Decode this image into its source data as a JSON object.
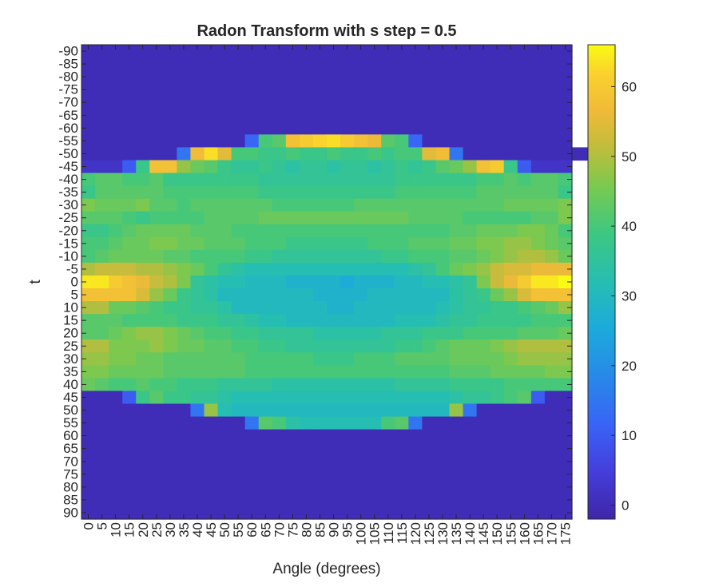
{
  "chart_data": {
    "type": "heatmap",
    "title": "Radon Transform with s step = 0.5",
    "xlabel": "Angle (degrees)",
    "ylabel": "t",
    "x_ticks": [
      "0",
      "5",
      "10",
      "15",
      "20",
      "25",
      "30",
      "35",
      "40",
      "45",
      "50",
      "55",
      "60",
      "65",
      "70",
      "75",
      "80",
      "85",
      "90",
      "95",
      "100",
      "105",
      "110",
      "115",
      "120",
      "125",
      "130",
      "135",
      "140",
      "145",
      "150",
      "155",
      "160",
      "165",
      "170",
      "175"
    ],
    "y_ticks": [
      "-90",
      "-85",
      "-80",
      "-75",
      "-70",
      "-65",
      "-60",
      "-55",
      "-50",
      "-45",
      "-40",
      "-35",
      "-30",
      "-25",
      "-20",
      "-15",
      "-10",
      "-5",
      "0",
      "5",
      "10",
      "15",
      "20",
      "25",
      "30",
      "35",
      "40",
      "45",
      "50",
      "55",
      "60",
      "65",
      "70",
      "75",
      "80",
      "85",
      "90"
    ],
    "colorbar_ticks": [
      "0",
      "10",
      "20",
      "30",
      "40",
      "50",
      "60"
    ],
    "colorbar_range": [
      -2,
      66
    ],
    "colormap": "parula",
    "values": [
      [
        0,
        0,
        0,
        0,
        0,
        0,
        0,
        0,
        0,
        0,
        0,
        0,
        0,
        0,
        0,
        0,
        0,
        0,
        0,
        0,
        0,
        0,
        0,
        0,
        0,
        0,
        0,
        0,
        0,
        0,
        0,
        0,
        0,
        0,
        0,
        0
      ],
      [
        0,
        0,
        0,
        0,
        0,
        0,
        0,
        0,
        0,
        0,
        0,
        0,
        0,
        0,
        0,
        0,
        0,
        0,
        0,
        0,
        0,
        0,
        0,
        0,
        0,
        0,
        0,
        0,
        0,
        0,
        0,
        0,
        0,
        0,
        0,
        0
      ],
      [
        0,
        0,
        0,
        0,
        0,
        0,
        0,
        0,
        0,
        0,
        0,
        0,
        0,
        0,
        0,
        0,
        0,
        0,
        0,
        0,
        0,
        0,
        0,
        0,
        0,
        0,
        0,
        0,
        0,
        0,
        0,
        0,
        0,
        0,
        0,
        0
      ],
      [
        0,
        0,
        0,
        0,
        0,
        0,
        0,
        0,
        0,
        0,
        0,
        0,
        0,
        0,
        0,
        0,
        0,
        0,
        0,
        0,
        0,
        0,
        0,
        0,
        0,
        0,
        0,
        0,
        0,
        0,
        0,
        0,
        0,
        0,
        0,
        0
      ],
      [
        0,
        0,
        0,
        0,
        0,
        0,
        0,
        0,
        0,
        0,
        0,
        0,
        0,
        0,
        0,
        0,
        0,
        0,
        0,
        0,
        0,
        0,
        0,
        0,
        0,
        0,
        0,
        0,
        0,
        0,
        0,
        0,
        0,
        0,
        0,
        0
      ],
      [
        0,
        0,
        0,
        0,
        0,
        0,
        0,
        0,
        0,
        0,
        0,
        0,
        0,
        0,
        0,
        0,
        0,
        0,
        0,
        0,
        0,
        0,
        0,
        0,
        0,
        0,
        0,
        0,
        0,
        0,
        0,
        0,
        0,
        0,
        0,
        0
      ],
      [
        0,
        0,
        0,
        0,
        0,
        0,
        0,
        0,
        0,
        0,
        0,
        0,
        0,
        0,
        0,
        0,
        0,
        0,
        0,
        0,
        0,
        0,
        0,
        0,
        0,
        0,
        0,
        0,
        0,
        0,
        0,
        0,
        0,
        0,
        0,
        0
      ],
      [
        0,
        0,
        0,
        0,
        0,
        0,
        0,
        0,
        0,
        0,
        0,
        0,
        12,
        40,
        42,
        58,
        60,
        62,
        63,
        60,
        58,
        56,
        42,
        40,
        12,
        0,
        0,
        0,
        0,
        0,
        0,
        0,
        0,
        0,
        0,
        0
      ],
      [
        0,
        0,
        0,
        0,
        0,
        0,
        0,
        15,
        57,
        63,
        55,
        40,
        40,
        38,
        38,
        40,
        38,
        38,
        40,
        38,
        38,
        40,
        38,
        40,
        40,
        55,
        57,
        15,
        0,
        0,
        0,
        0,
        0,
        0,
        0,
        0,
        0,
        0
      ],
      [
        2,
        2,
        2,
        10,
        38,
        58,
        58,
        48,
        44,
        42,
        38,
        36,
        36,
        38,
        36,
        34,
        36,
        36,
        34,
        36,
        36,
        34,
        36,
        38,
        36,
        38,
        42,
        44,
        48,
        58,
        60,
        38,
        10,
        2,
        2,
        2
      ],
      [
        40,
        42,
        42,
        40,
        40,
        42,
        38,
        38,
        38,
        38,
        38,
        38,
        38,
        36,
        36,
        36,
        36,
        36,
        36,
        36,
        36,
        36,
        36,
        38,
        38,
        38,
        38,
        38,
        38,
        40,
        40,
        42,
        40,
        42,
        42,
        40
      ],
      [
        38,
        42,
        42,
        42,
        42,
        42,
        40,
        40,
        40,
        40,
        40,
        40,
        40,
        38,
        38,
        38,
        38,
        38,
        38,
        38,
        38,
        38,
        38,
        40,
        40,
        40,
        40,
        40,
        40,
        42,
        42,
        42,
        42,
        42,
        42,
        38
      ],
      [
        46,
        44,
        44,
        44,
        46,
        42,
        42,
        40,
        42,
        42,
        42,
        42,
        42,
        42,
        40,
        40,
        40,
        40,
        40,
        40,
        42,
        42,
        42,
        42,
        42,
        42,
        42,
        42,
        42,
        42,
        42,
        44,
        44,
        44,
        44,
        46
      ],
      [
        42,
        42,
        42,
        40,
        38,
        40,
        40,
        40,
        40,
        42,
        42,
        42,
        42,
        44,
        44,
        44,
        44,
        44,
        44,
        44,
        44,
        44,
        44,
        44,
        42,
        42,
        42,
        42,
        40,
        40,
        40,
        40,
        40,
        42,
        42,
        46
      ],
      [
        38,
        38,
        40,
        42,
        44,
        44,
        44,
        44,
        42,
        42,
        42,
        40,
        40,
        40,
        40,
        40,
        40,
        40,
        40,
        40,
        40,
        40,
        40,
        40,
        40,
        40,
        40,
        42,
        42,
        44,
        44,
        44,
        46,
        46,
        44,
        40
      ],
      [
        40,
        40,
        42,
        44,
        44,
        46,
        46,
        44,
        44,
        42,
        42,
        42,
        40,
        40,
        40,
        38,
        38,
        38,
        38,
        38,
        38,
        40,
        40,
        40,
        42,
        42,
        42,
        44,
        44,
        46,
        46,
        48,
        48,
        46,
        44,
        42
      ],
      [
        40,
        42,
        44,
        44,
        44,
        44,
        42,
        42,
        40,
        40,
        40,
        40,
        38,
        38,
        36,
        36,
        36,
        36,
        36,
        36,
        36,
        36,
        38,
        38,
        40,
        40,
        40,
        42,
        42,
        44,
        46,
        48,
        50,
        50,
        48,
        44
      ],
      [
        50,
        52,
        52,
        52,
        50,
        50,
        48,
        46,
        44,
        40,
        36,
        34,
        32,
        32,
        32,
        32,
        32,
        32,
        32,
        32,
        32,
        32,
        32,
        32,
        34,
        36,
        40,
        44,
        46,
        48,
        52,
        54,
        54,
        56,
        56,
        56
      ],
      [
        64,
        64,
        60,
        58,
        56,
        52,
        50,
        46,
        36,
        34,
        32,
        32,
        30,
        30,
        30,
        28,
        28,
        28,
        28,
        26,
        28,
        28,
        28,
        30,
        30,
        32,
        32,
        34,
        36,
        46,
        52,
        56,
        60,
        64,
        64,
        66
      ],
      [
        58,
        58,
        58,
        58,
        54,
        48,
        44,
        38,
        36,
        34,
        30,
        30,
        30,
        30,
        30,
        30,
        30,
        28,
        28,
        28,
        28,
        30,
        30,
        30,
        30,
        30,
        30,
        34,
        36,
        38,
        44,
        48,
        54,
        58,
        58,
        58
      ],
      [
        50,
        50,
        44,
        44,
        42,
        40,
        38,
        38,
        36,
        36,
        34,
        30,
        30,
        30,
        30,
        30,
        30,
        30,
        28,
        28,
        30,
        30,
        30,
        30,
        30,
        30,
        32,
        34,
        36,
        36,
        38,
        38,
        40,
        42,
        44,
        48
      ],
      [
        42,
        42,
        42,
        40,
        40,
        40,
        40,
        38,
        38,
        38,
        36,
        36,
        34,
        32,
        32,
        30,
        30,
        30,
        30,
        30,
        30,
        30,
        30,
        32,
        32,
        32,
        34,
        36,
        36,
        38,
        38,
        38,
        38,
        40,
        40,
        40
      ],
      [
        42,
        42,
        44,
        46,
        48,
        48,
        46,
        44,
        42,
        40,
        40,
        38,
        38,
        36,
        36,
        36,
        36,
        34,
        34,
        34,
        34,
        34,
        36,
        36,
        36,
        38,
        38,
        38,
        40,
        40,
        40,
        40,
        42,
        42,
        42,
        44
      ],
      [
        50,
        50,
        46,
        46,
        46,
        48,
        46,
        44,
        44,
        42,
        42,
        40,
        40,
        38,
        38,
        36,
        36,
        36,
        36,
        36,
        36,
        36,
        36,
        38,
        38,
        40,
        42,
        44,
        44,
        44,
        46,
        48,
        50,
        50,
        50,
        50
      ],
      [
        48,
        48,
        46,
        46,
        44,
        44,
        42,
        42,
        42,
        42,
        42,
        42,
        40,
        40,
        40,
        40,
        40,
        38,
        38,
        38,
        40,
        40,
        40,
        42,
        42,
        42,
        42,
        44,
        44,
        44,
        44,
        46,
        48,
        48,
        48,
        48
      ],
      [
        46,
        46,
        44,
        44,
        44,
        44,
        42,
        42,
        42,
        42,
        42,
        42,
        40,
        40,
        40,
        40,
        40,
        40,
        40,
        40,
        40,
        40,
        40,
        40,
        40,
        40,
        40,
        42,
        42,
        42,
        44,
        44,
        44,
        44,
        46,
        46
      ],
      [
        44,
        42,
        40,
        40,
        42,
        40,
        40,
        38,
        38,
        38,
        36,
        36,
        36,
        36,
        34,
        34,
        34,
        34,
        34,
        34,
        34,
        34,
        34,
        36,
        36,
        36,
        36,
        38,
        38,
        38,
        38,
        40,
        40,
        40,
        40,
        40
      ],
      [
        0,
        0,
        0,
        10,
        38,
        42,
        38,
        38,
        36,
        36,
        34,
        32,
        32,
        32,
        32,
        32,
        32,
        32,
        32,
        32,
        32,
        32,
        32,
        32,
        32,
        32,
        32,
        34,
        36,
        36,
        38,
        40,
        42,
        10,
        0,
        0
      ],
      [
        0,
        0,
        0,
        0,
        0,
        0,
        0,
        0,
        15,
        48,
        32,
        30,
        30,
        30,
        30,
        30,
        30,
        30,
        30,
        30,
        30,
        30,
        30,
        30,
        30,
        30,
        30,
        48,
        15,
        0,
        0,
        0,
        0,
        0,
        0,
        0
      ],
      [
        0,
        0,
        0,
        0,
        0,
        0,
        0,
        0,
        0,
        0,
        0,
        0,
        15,
        42,
        40,
        34,
        32,
        32,
        32,
        32,
        32,
        32,
        40,
        42,
        15,
        0,
        0,
        0,
        0,
        0,
        0,
        0,
        0,
        0,
        0,
        0
      ],
      [
        0,
        0,
        0,
        0,
        0,
        0,
        0,
        0,
        0,
        0,
        0,
        0,
        0,
        0,
        0,
        0,
        0,
        0,
        0,
        0,
        0,
        0,
        0,
        0,
        0,
        0,
        0,
        0,
        0,
        0,
        0,
        0,
        0,
        0,
        0,
        0
      ],
      [
        0,
        0,
        0,
        0,
        0,
        0,
        0,
        0,
        0,
        0,
        0,
        0,
        0,
        0,
        0,
        0,
        0,
        0,
        0,
        0,
        0,
        0,
        0,
        0,
        0,
        0,
        0,
        0,
        0,
        0,
        0,
        0,
        0,
        0,
        0,
        0
      ],
      [
        0,
        0,
        0,
        0,
        0,
        0,
        0,
        0,
        0,
        0,
        0,
        0,
        0,
        0,
        0,
        0,
        0,
        0,
        0,
        0,
        0,
        0,
        0,
        0,
        0,
        0,
        0,
        0,
        0,
        0,
        0,
        0,
        0,
        0,
        0,
        0
      ],
      [
        0,
        0,
        0,
        0,
        0,
        0,
        0,
        0,
        0,
        0,
        0,
        0,
        0,
        0,
        0,
        0,
        0,
        0,
        0,
        0,
        0,
        0,
        0,
        0,
        0,
        0,
        0,
        0,
        0,
        0,
        0,
        0,
        0,
        0,
        0,
        0
      ],
      [
        0,
        0,
        0,
        0,
        0,
        0,
        0,
        0,
        0,
        0,
        0,
        0,
        0,
        0,
        0,
        0,
        0,
        0,
        0,
        0,
        0,
        0,
        0,
        0,
        0,
        0,
        0,
        0,
        0,
        0,
        0,
        0,
        0,
        0,
        0,
        0
      ],
      [
        0,
        0,
        0,
        0,
        0,
        0,
        0,
        0,
        0,
        0,
        0,
        0,
        0,
        0,
        0,
        0,
        0,
        0,
        0,
        0,
        0,
        0,
        0,
        0,
        0,
        0,
        0,
        0,
        0,
        0,
        0,
        0,
        0,
        0,
        0,
        0
      ],
      [
        0,
        0,
        0,
        0,
        0,
        0,
        0,
        0,
        0,
        0,
        0,
        0,
        0,
        0,
        0,
        0,
        0,
        0,
        0,
        0,
        0,
        0,
        0,
        0,
        0,
        0,
        0,
        0,
        0,
        0,
        0,
        0,
        0,
        0,
        0,
        0
      ]
    ]
  }
}
